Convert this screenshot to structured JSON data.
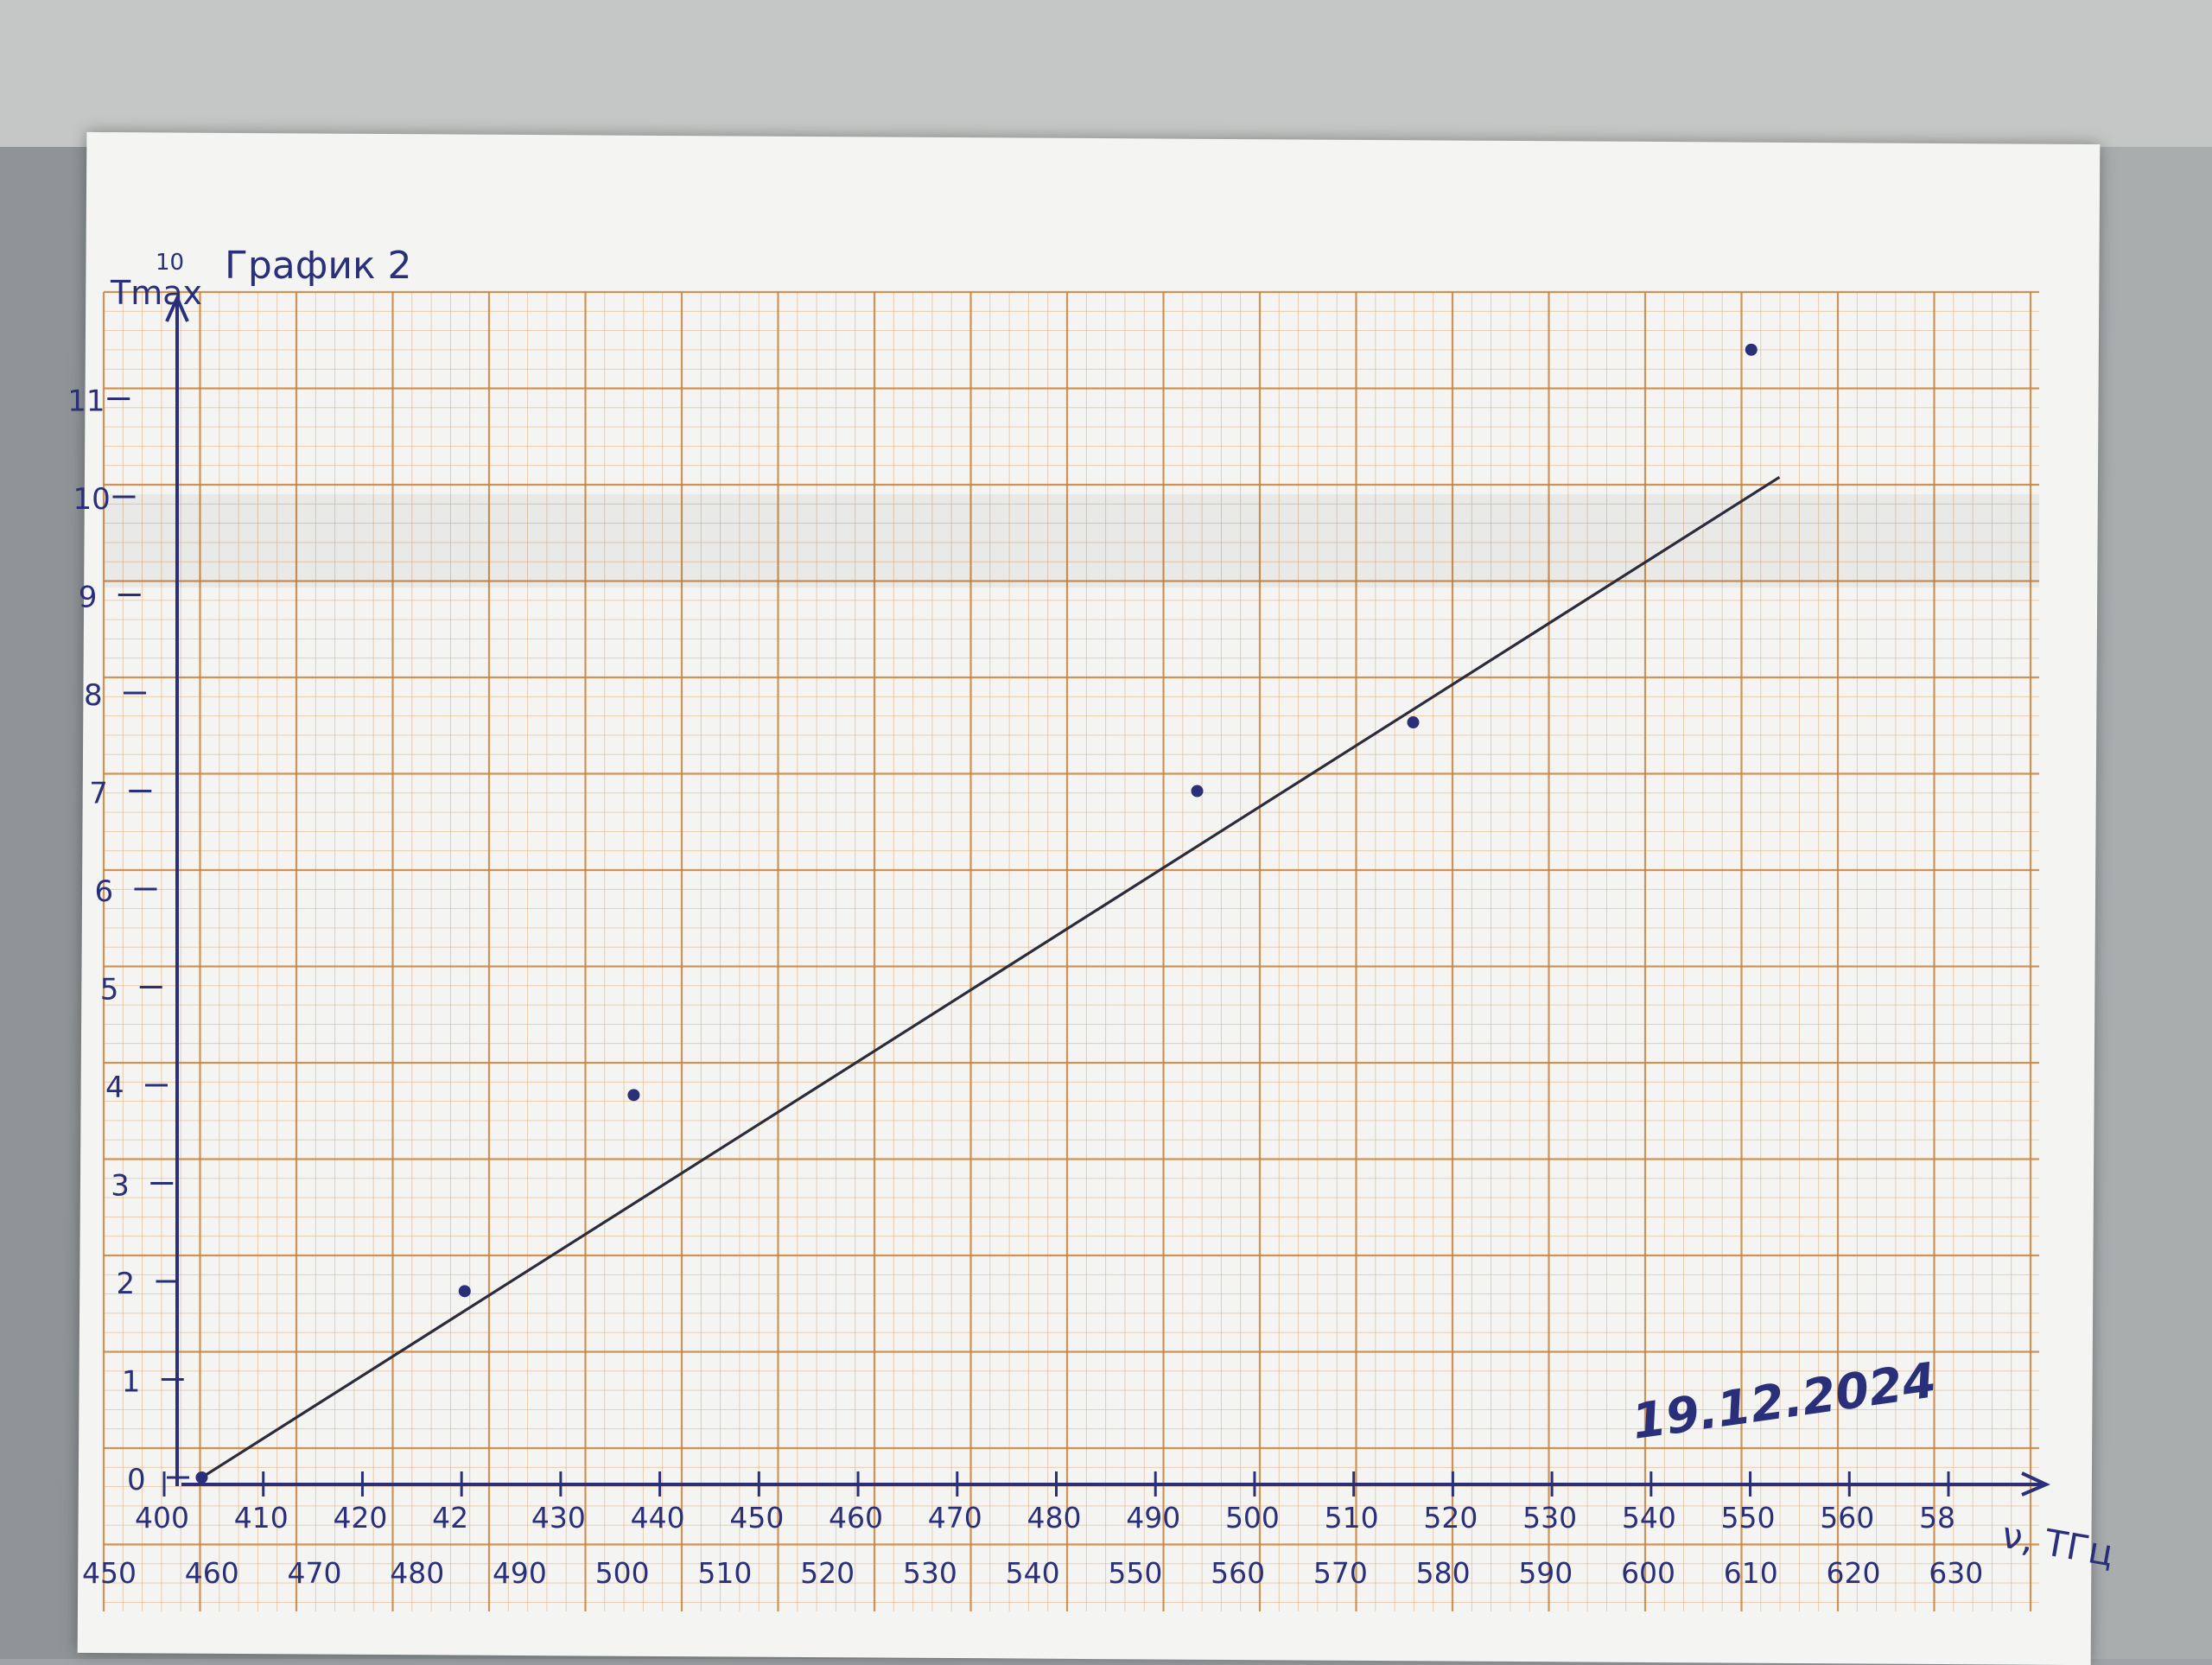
{
  "chart_data": {
    "type": "scatter",
    "title": "График 2",
    "title_prefix": "10",
    "ylabel": "Tmax",
    "xlabel": "ν, ТГц",
    "xlim": [
      400,
      590
    ],
    "ylim": [
      0,
      12
    ],
    "x_ticks_top": [
      "400",
      "410",
      "420",
      "42",
      "430",
      "440",
      "450",
      "460",
      "470",
      "480",
      "490",
      "500",
      "510",
      "520",
      "530",
      "540",
      "550",
      "560",
      "58"
    ],
    "x_ticks_bottom": [
      "450",
      "460",
      "470",
      "480",
      "490",
      "500",
      "510",
      "520",
      "530",
      "540",
      "550",
      "560",
      "570",
      "580",
      "590",
      "600",
      "610",
      "620",
      "630"
    ],
    "y_ticks": [
      "0",
      "1",
      "2",
      "3",
      "4",
      "5",
      "6",
      "7",
      "8",
      "9",
      "10",
      "11"
    ],
    "points": [
      {
        "x": 404,
        "y": 0
      },
      {
        "x": 432,
        "y": 1.9
      },
      {
        "x": 450,
        "y": 3.9
      },
      {
        "x": 510,
        "y": 7.0
      },
      {
        "x": 533,
        "y": 7.7
      },
      {
        "x": 569,
        "y": 11.5
      }
    ],
    "fit_line": {
      "x": [
        404,
        572
      ],
      "y": [
        0,
        10.2
      ]
    },
    "annotation": "19.12.2024",
    "grid": true,
    "colors": {
      "grid_major": "#c9833a",
      "grid_minor": "#e2b58a",
      "ink": "#2a2f7a",
      "pencil": "#2b2b3b",
      "paper": "#f4f4f2"
    }
  }
}
